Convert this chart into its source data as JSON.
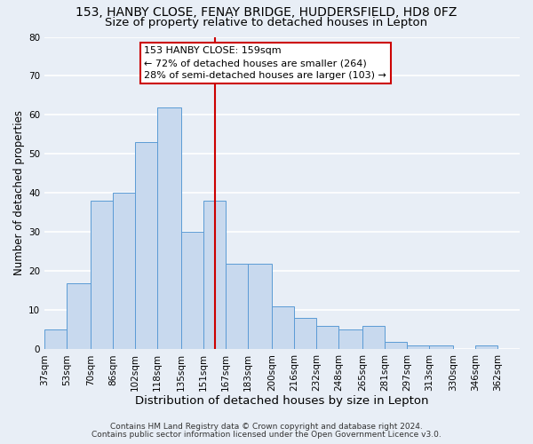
{
  "title": "153, HANBY CLOSE, FENAY BRIDGE, HUDDERSFIELD, HD8 0FZ",
  "subtitle": "Size of property relative to detached houses in Lepton",
  "xlabel": "Distribution of detached houses by size in Lepton",
  "ylabel": "Number of detached properties",
  "bar_values": [
    5,
    17,
    38,
    40,
    53,
    62,
    30,
    38,
    22,
    22,
    11,
    8,
    6,
    5,
    6,
    2,
    1,
    1,
    0,
    1
  ],
  "bin_labels": [
    "37sqm",
    "53sqm",
    "70sqm",
    "86sqm",
    "102sqm",
    "118sqm",
    "135sqm",
    "151sqm",
    "167sqm",
    "183sqm",
    "200sqm",
    "216sqm",
    "232sqm",
    "248sqm",
    "265sqm",
    "281sqm",
    "297sqm",
    "313sqm",
    "330sqm",
    "346sqm",
    "362sqm"
  ],
  "bin_edges": [
    37,
    53,
    70,
    86,
    102,
    118,
    135,
    151,
    167,
    183,
    200,
    216,
    232,
    248,
    265,
    281,
    297,
    313,
    330,
    346,
    362
  ],
  "bar_color": "#c8d9ee",
  "bar_edge_color": "#5b9bd5",
  "vline_x": 159,
  "vline_color": "#cc0000",
  "annotation_line1": "153 HANBY CLOSE: 159sqm",
  "annotation_line2": "← 72% of detached houses are smaller (264)",
  "annotation_line3": "28% of semi-detached houses are larger (103) →",
  "annotation_box_color": "#cc0000",
  "ylim": [
    0,
    80
  ],
  "yticks": [
    0,
    10,
    20,
    30,
    40,
    50,
    60,
    70,
    80
  ],
  "bg_color": "#e8eef6",
  "grid_color": "#ffffff",
  "footnote1": "Contains HM Land Registry data © Crown copyright and database right 2024.",
  "footnote2": "Contains public sector information licensed under the Open Government Licence v3.0.",
  "title_fontsize": 10,
  "subtitle_fontsize": 9.5,
  "xlabel_fontsize": 9.5,
  "ylabel_fontsize": 8.5,
  "tick_fontsize": 7.5,
  "annot_fontsize": 8.0,
  "footnote_fontsize": 6.5
}
